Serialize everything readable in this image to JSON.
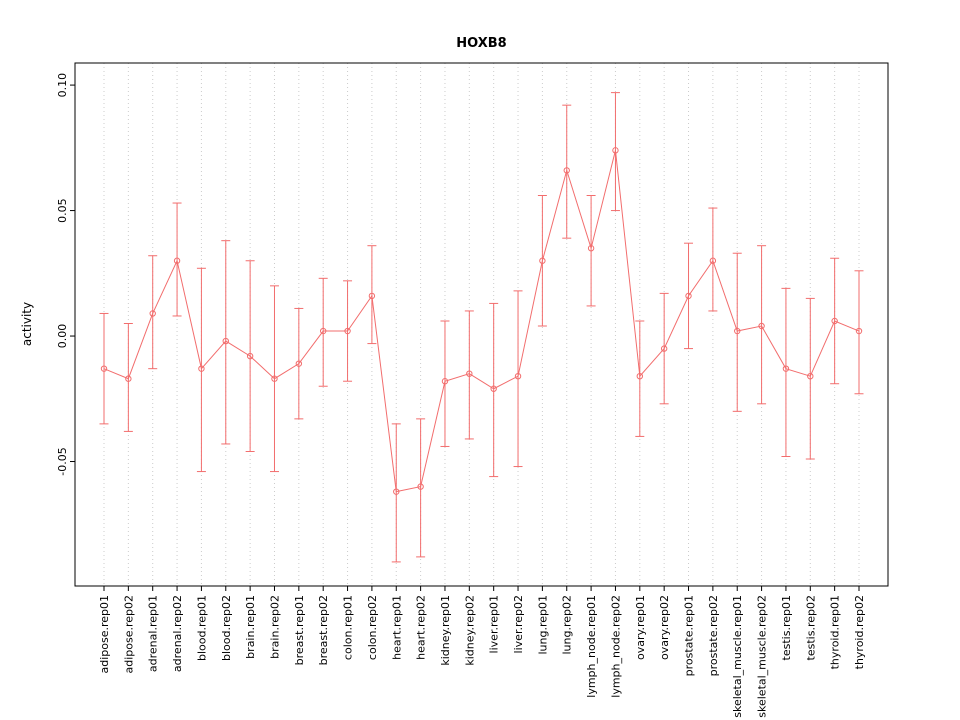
{
  "chart_data": {
    "type": "line",
    "title": "HOXB8",
    "xlabel": "",
    "ylabel": "activity",
    "ylim": [
      -0.0996,
      0.1088
    ],
    "yticks": [
      -0.05,
      0,
      0.05,
      0.1
    ],
    "grid": "vertical-dotted",
    "legend": "none",
    "series_color": "#f26d6d",
    "point_style": "open-circle",
    "error_bars": true,
    "categories": [
      "adipose.rep01",
      "adipose.rep02",
      "adrenal.rep01",
      "adrenal.rep02",
      "blood.rep01",
      "blood.rep02",
      "brain.rep01",
      "brain.rep02",
      "breast.rep01",
      "breast.rep02",
      "colon.rep01",
      "colon.rep02",
      "heart.rep01",
      "heart.rep02",
      "kidney.rep01",
      "kidney.rep02",
      "liver.rep01",
      "liver.rep02",
      "lung.rep01",
      "lung.rep02",
      "lymph_node.rep01",
      "lymph_node.rep02",
      "ovary.rep01",
      "ovary.rep02",
      "prostate.rep01",
      "prostate.rep02",
      "skeletal_muscle.rep01",
      "skeletal_muscle.rep02",
      "testis.rep01",
      "testis.rep02",
      "thyroid.rep01",
      "thyroid.rep02"
    ],
    "series": [
      {
        "name": "activity",
        "values": [
          -0.013,
          -0.017,
          0.009,
          0.03,
          -0.013,
          -0.002,
          -0.008,
          -0.017,
          -0.011,
          0.002,
          0.002,
          0.016,
          -0.062,
          -0.06,
          -0.018,
          -0.015,
          -0.021,
          -0.016,
          0.03,
          0.066,
          0.035,
          0.074,
          -0.016,
          -0.005,
          0.016,
          0.03,
          0.002,
          0.004,
          -0.013,
          -0.016,
          0.006,
          0.002
        ],
        "error_low": [
          -0.035,
          -0.038,
          -0.013,
          0.008,
          -0.054,
          -0.043,
          -0.046,
          -0.054,
          -0.033,
          -0.02,
          -0.018,
          -0.003,
          -0.09,
          -0.088,
          -0.044,
          -0.041,
          -0.056,
          -0.052,
          0.004,
          0.039,
          0.012,
          0.05,
          -0.04,
          -0.027,
          -0.005,
          0.01,
          -0.03,
          -0.027,
          -0.048,
          -0.049,
          -0.019,
          -0.023
        ],
        "error_high": [
          0.009,
          0.005,
          0.032,
          0.053,
          0.027,
          0.038,
          0.03,
          0.02,
          0.011,
          0.023,
          0.022,
          0.036,
          -0.035,
          -0.033,
          0.006,
          0.01,
          0.013,
          0.018,
          0.056,
          0.092,
          0.056,
          0.097,
          0.006,
          0.017,
          0.037,
          0.051,
          0.033,
          0.036,
          0.019,
          0.015,
          0.031,
          0.026
        ]
      }
    ]
  }
}
